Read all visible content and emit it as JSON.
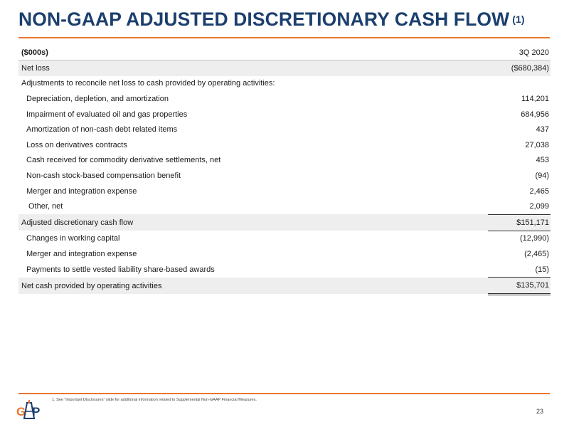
{
  "header": {
    "title": "NON-GAAP ADJUSTED DISCRETIONARY CASH FLOW",
    "title_footnote_ref": "(1)"
  },
  "table": {
    "unit_label": "($000s)",
    "period_label": "3Q 2020",
    "rows": [
      {
        "label": "Net loss",
        "value": "($680,384)"
      },
      {
        "label": "Adjustments to reconcile net loss to cash provided by operating activities:",
        "value": ""
      },
      {
        "label": "Depreciation, depletion, and amortization",
        "value": "114,201"
      },
      {
        "label": "Impairment of evaluated oil and gas properties",
        "value": "684,956"
      },
      {
        "label": "Amortization of non-cash debt related items",
        "value": "437"
      },
      {
        "label": "Loss on derivatives contracts",
        "value": "27,038"
      },
      {
        "label": "Cash received for commodity derivative settlements, net",
        "value": "453"
      },
      {
        "label": "Non-cash stock-based compensation benefit",
        "value": "(94)"
      },
      {
        "label": "Merger and integration expense",
        "value": "2,465"
      },
      {
        "label": "Other, net",
        "value": "2,099"
      },
      {
        "label": "Adjusted discretionary cash flow",
        "value": "$151,171"
      },
      {
        "label": "Changes in working capital",
        "value": "(12,990)"
      },
      {
        "label": "Merger and integration expense",
        "value": "(2,465)"
      },
      {
        "label": "Payments to settle vested liability share-based awards",
        "value": "(15)"
      },
      {
        "label": "Net cash provided by operating activities",
        "value": "$135,701"
      }
    ]
  },
  "footer": {
    "footnote": "1. See “Important Disclosures” slide for additional information related to Supplemental Non-GAAP Financial Measures.",
    "page_number": "23",
    "logo_text": "GAP",
    "logo_name": "company-logo"
  },
  "colors": {
    "title": "#1c3f6e",
    "accent_rule": "#e8762d",
    "row_shade": "#eeeeee"
  }
}
